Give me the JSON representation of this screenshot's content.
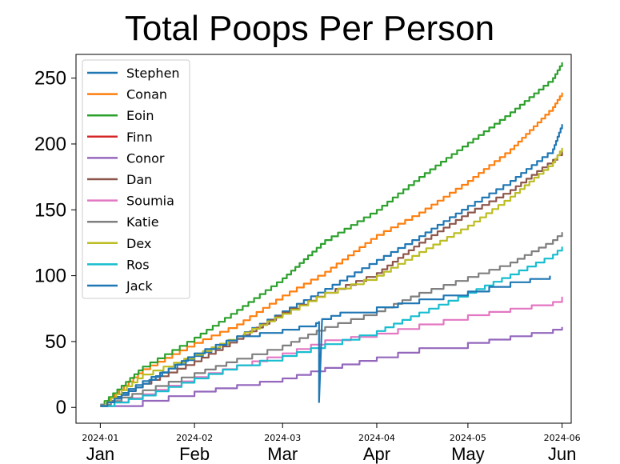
{
  "chart_data": {
    "type": "line",
    "title": "Total Poops Per Person",
    "xlabel": "",
    "ylabel": "",
    "ylim": [
      -12,
      268
    ],
    "yticks": [
      0,
      50,
      100,
      150,
      200,
      250
    ],
    "xlim": [
      "2023-12-24",
      "2024-06-04"
    ],
    "xticks": [
      {
        "date": "2024-01-01",
        "label": "2024-01"
      },
      {
        "date": "2024-02-01",
        "label": "2024-02"
      },
      {
        "date": "2024-03-01",
        "label": "2024-03"
      },
      {
        "date": "2024-04-01",
        "label": "2024-04"
      },
      {
        "date": "2024-05-01",
        "label": "2024-05"
      },
      {
        "date": "2024-06-01",
        "label": "2024-06"
      }
    ],
    "month_labels": [
      {
        "date": "2024-01-01",
        "label": "Jan"
      },
      {
        "date": "2024-02-01",
        "label": "Feb"
      },
      {
        "date": "2024-03-01",
        "label": "Mar"
      },
      {
        "date": "2024-04-01",
        "label": "Apr"
      },
      {
        "date": "2024-05-01",
        "label": "May"
      },
      {
        "date": "2024-06-01",
        "label": "Jun"
      }
    ],
    "legend_position": "top-left",
    "grid": false,
    "series": [
      {
        "name": "Stephen",
        "color": "#1f77b4",
        "points": [
          [
            "2024-01-01",
            2
          ],
          [
            "2024-01-15",
            20
          ],
          [
            "2024-02-01",
            39
          ],
          [
            "2024-02-15",
            54
          ],
          [
            "2024-03-01",
            73
          ],
          [
            "2024-03-15",
            90
          ],
          [
            "2024-04-01",
            112
          ],
          [
            "2024-04-15",
            130
          ],
          [
            "2024-05-01",
            153
          ],
          [
            "2024-05-15",
            172
          ],
          [
            "2024-05-29",
            196
          ],
          [
            "2024-06-01",
            215
          ]
        ]
      },
      {
        "name": "Conan",
        "color": "#ff7f0e",
        "points": [
          [
            "2024-01-01",
            1
          ],
          [
            "2024-01-15",
            29
          ],
          [
            "2024-02-01",
            49
          ],
          [
            "2024-02-15",
            63
          ],
          [
            "2024-03-01",
            85
          ],
          [
            "2024-03-15",
            103
          ],
          [
            "2024-04-01",
            131
          ],
          [
            "2024-04-15",
            148
          ],
          [
            "2024-05-01",
            172
          ],
          [
            "2024-05-15",
            196
          ],
          [
            "2024-05-29",
            228
          ],
          [
            "2024-06-01",
            239
          ]
        ]
      },
      {
        "name": "Eoin",
        "color": "#2ca02c",
        "points": [
          [
            "2024-01-01",
            2
          ],
          [
            "2024-01-15",
            31
          ],
          [
            "2024-02-01",
            53
          ],
          [
            "2024-02-15",
            74
          ],
          [
            "2024-03-01",
            98
          ],
          [
            "2024-03-15",
            127
          ],
          [
            "2024-04-01",
            150
          ],
          [
            "2024-04-15",
            175
          ],
          [
            "2024-05-01",
            201
          ],
          [
            "2024-05-15",
            224
          ],
          [
            "2024-05-29",
            250
          ],
          [
            "2024-06-01",
            262
          ]
        ]
      },
      {
        "name": "Finn",
        "color": "#d62728",
        "points": []
      },
      {
        "name": "Conor",
        "color": "#9467bd",
        "points": [
          [
            "2024-01-01",
            1
          ],
          [
            "2024-01-15",
            5
          ],
          [
            "2024-02-01",
            12
          ],
          [
            "2024-02-15",
            17
          ],
          [
            "2024-03-01",
            22
          ],
          [
            "2024-03-15",
            30
          ],
          [
            "2024-04-01",
            38
          ],
          [
            "2024-04-15",
            45
          ],
          [
            "2024-05-01",
            49
          ],
          [
            "2024-05-15",
            54
          ],
          [
            "2024-05-29",
            59
          ],
          [
            "2024-06-01",
            61
          ]
        ]
      },
      {
        "name": "Dan",
        "color": "#8c564b",
        "points": [
          [
            "2024-01-01",
            1
          ],
          [
            "2024-01-15",
            18
          ],
          [
            "2024-02-01",
            35
          ],
          [
            "2024-02-15",
            52
          ],
          [
            "2024-03-01",
            72
          ],
          [
            "2024-03-15",
            87
          ],
          [
            "2024-04-01",
            102
          ],
          [
            "2024-04-15",
            125
          ],
          [
            "2024-05-01",
            148
          ],
          [
            "2024-05-15",
            165
          ],
          [
            "2024-05-29",
            188
          ],
          [
            "2024-06-01",
            195
          ]
        ]
      },
      {
        "name": "Soumia",
        "color": "#e377c2",
        "points": [
          [
            "2024-01-01",
            1
          ],
          [
            "2024-01-15",
            10
          ],
          [
            "2024-02-01",
            23
          ],
          [
            "2024-02-15",
            32
          ],
          [
            "2024-03-01",
            41
          ],
          [
            "2024-03-15",
            51
          ],
          [
            "2024-04-01",
            56
          ],
          [
            "2024-04-15",
            63
          ],
          [
            "2024-05-01",
            70
          ],
          [
            "2024-05-15",
            75
          ],
          [
            "2024-05-29",
            80
          ],
          [
            "2024-06-01",
            84
          ]
        ]
      },
      {
        "name": "Katie",
        "color": "#7f7f7f",
        "points": [
          [
            "2024-01-01",
            2
          ],
          [
            "2024-01-15",
            13
          ],
          [
            "2024-02-01",
            26
          ],
          [
            "2024-02-15",
            37
          ],
          [
            "2024-03-01",
            47
          ],
          [
            "2024-03-15",
            61
          ],
          [
            "2024-04-01",
            73
          ],
          [
            "2024-04-15",
            87
          ],
          [
            "2024-05-01",
            99
          ],
          [
            "2024-05-15",
            110
          ],
          [
            "2024-05-29",
            127
          ],
          [
            "2024-06-01",
            133
          ]
        ]
      },
      {
        "name": "Dex",
        "color": "#bcbd22",
        "points": [
          [
            "2024-01-01",
            1
          ],
          [
            "2024-01-15",
            25
          ],
          [
            "2024-02-01",
            40
          ],
          [
            "2024-02-15",
            54
          ],
          [
            "2024-03-01",
            71
          ],
          [
            "2024-03-15",
            87
          ],
          [
            "2024-04-01",
            100
          ],
          [
            "2024-04-15",
            118
          ],
          [
            "2024-05-01",
            138
          ],
          [
            "2024-05-15",
            160
          ],
          [
            "2024-05-29",
            186
          ],
          [
            "2024-06-01",
            197
          ]
        ]
      },
      {
        "name": "Ros",
        "color": "#17becf",
        "points": [
          [
            "2024-01-01",
            1
          ],
          [
            "2024-01-15",
            9
          ],
          [
            "2024-02-01",
            22
          ],
          [
            "2024-02-15",
            32
          ],
          [
            "2024-03-01",
            39
          ],
          [
            "2024-03-15",
            48
          ],
          [
            "2024-04-01",
            58
          ],
          [
            "2024-04-15",
            72
          ],
          [
            "2024-05-01",
            87
          ],
          [
            "2024-05-15",
            101
          ],
          [
            "2024-05-29",
            116
          ],
          [
            "2024-06-01",
            122
          ]
        ]
      },
      {
        "name": "Jack",
        "color": "#1f77b4",
        "points": [
          [
            "2024-01-01",
            1
          ],
          [
            "2024-01-15",
            18
          ],
          [
            "2024-02-01",
            41
          ],
          [
            "2024-02-15",
            54
          ],
          [
            "2024-03-01",
            59
          ],
          [
            "2024-03-12",
            64
          ],
          [
            "2024-03-13",
            65
          ],
          [
            "2024-03-13",
            4
          ],
          [
            "2024-03-14",
            67
          ],
          [
            "2024-03-20",
            72
          ],
          [
            "2024-04-01",
            76
          ],
          [
            "2024-04-15",
            82
          ],
          [
            "2024-05-01",
            88
          ],
          [
            "2024-05-15",
            95
          ],
          [
            "2024-05-28",
            100
          ]
        ]
      }
    ]
  }
}
